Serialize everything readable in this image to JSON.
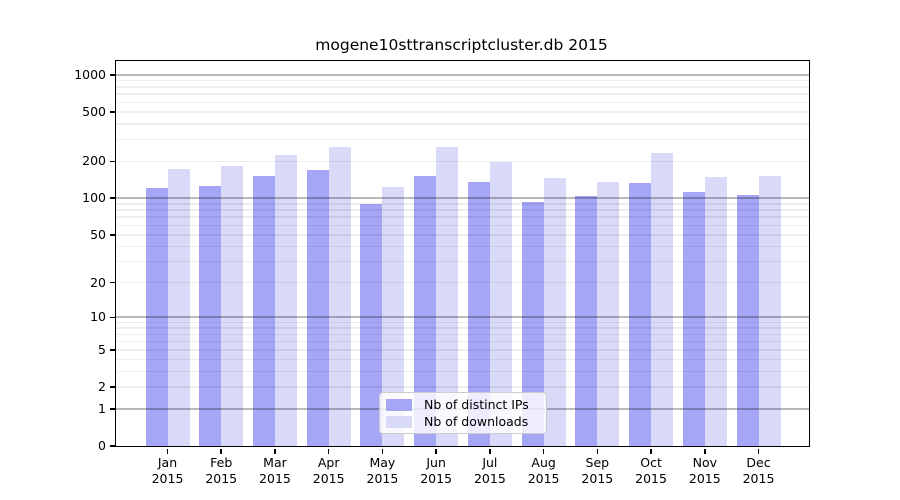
{
  "chart_data": {
    "type": "bar",
    "title": "mogene10sttranscriptcluster.db 2015",
    "categories": [
      "Jan",
      "Feb",
      "Mar",
      "Apr",
      "May",
      "Jun",
      "Jul",
      "Aug",
      "Sep",
      "Oct",
      "Nov",
      "Dec"
    ],
    "category_year": "2015",
    "series": [
      {
        "name": "Nb of distinct IPs",
        "color": "#a6a6f7",
        "values": [
          122,
          127,
          152,
          171,
          90,
          153,
          136,
          94,
          105,
          133,
          113,
          107
        ]
      },
      {
        "name": "Nb of downloads",
        "color": "#d9d9f8",
        "values": [
          174,
          183,
          225,
          262,
          123,
          259,
          197,
          146,
          135,
          232,
          148,
          153
        ]
      }
    ],
    "yscale": "log10(1+x)",
    "ylim": [
      0,
      1300
    ],
    "ytick_values": [
      0,
      1,
      2,
      5,
      10,
      20,
      50,
      100,
      200,
      500,
      1000
    ],
    "decade_gridlines": [
      1,
      10,
      100,
      1000
    ],
    "minor_gridlines": [
      2,
      3,
      4,
      5,
      6,
      7,
      8,
      9,
      20,
      30,
      40,
      50,
      60,
      70,
      80,
      90,
      200,
      300,
      400,
      500,
      600,
      700,
      800,
      900
    ],
    "grid": true,
    "legend_position": "bottom-center",
    "xlabel": "",
    "ylabel": ""
  },
  "colors": {
    "bar_distinct_ips": "#a6a6f7",
    "bar_downloads": "#d9d9f8",
    "spine": "#000000",
    "background": "#ffffff"
  }
}
